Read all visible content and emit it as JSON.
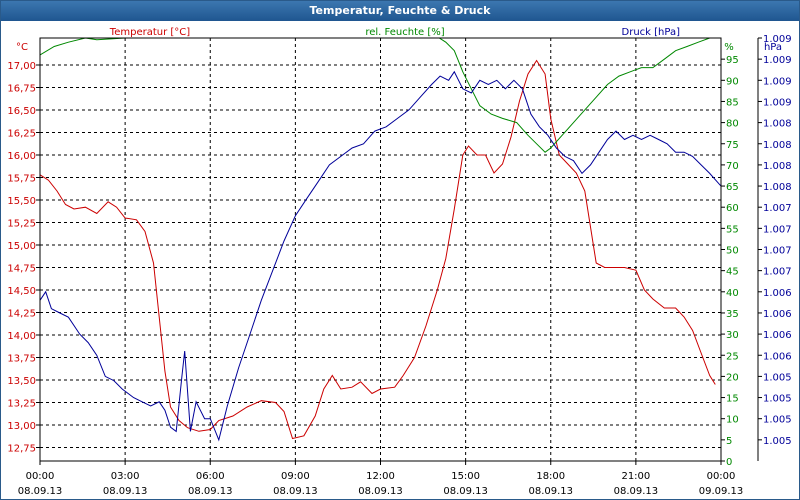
{
  "title": "Temperatur, Feuchte & Druck",
  "chart_data": {
    "type": "line",
    "title": "Temperatur, Feuchte & Druck",
    "x_labels": [
      {
        "time": "00:00",
        "date": "08.09.13"
      },
      {
        "time": "03:00",
        "date": "08.09.13"
      },
      {
        "time": "06:00",
        "date": "08.09.13"
      },
      {
        "time": "09:00",
        "date": "08.09.13"
      },
      {
        "time": "12:00",
        "date": "08.09.13"
      },
      {
        "time": "15:00",
        "date": "08.09.13"
      },
      {
        "time": "18:00",
        "date": "08.09.13"
      },
      {
        "time": "21:00",
        "date": "08.09.13"
      },
      {
        "time": "00:00",
        "date": "09.09.13"
      }
    ],
    "x_range_hours": [
      0,
      24
    ],
    "grid": true,
    "axes": {
      "temperature": {
        "label": "Temperatur [°C]",
        "unit": "°C",
        "side": "left",
        "range": [
          12.6,
          17.3
        ],
        "ticks": [
          "12,75",
          "13,00",
          "13,25",
          "13,50",
          "13,75",
          "14,00",
          "14,25",
          "14,50",
          "14,75",
          "15,00",
          "15,25",
          "15,50",
          "15,75",
          "16,00",
          "16,25",
          "16,50",
          "16,75",
          "17,00"
        ],
        "color": "#cc0000"
      },
      "humidity": {
        "label": "rel. Feuchte [%]",
        "unit": "%",
        "side": "right",
        "range": [
          0,
          100
        ],
        "ticks": [
          "0",
          "5",
          "10",
          "15",
          "20",
          "25",
          "30",
          "35",
          "40",
          "45",
          "50",
          "55",
          "60",
          "65",
          "70",
          "75",
          "80",
          "85",
          "90",
          "95"
        ],
        "color": "#008800"
      },
      "pressure": {
        "label": "Druck [hPa]",
        "unit": "hPa",
        "side": "right",
        "range": [
          0,
          1
        ],
        "ticks": [
          "1.005",
          "1.005",
          "1.005",
          "1.005",
          "1.006",
          "1.006",
          "1.006",
          "1.006",
          "1.007",
          "1.007",
          "1.007",
          "1.007",
          "1.008",
          "1.008",
          "1.008",
          "1.008",
          "1.009",
          "1.009",
          "1.009",
          "1.009"
        ],
        "color": "#000099"
      }
    },
    "series": [
      {
        "name": "Temperatur [°C]",
        "axis": "temperature",
        "color": "#cc0000",
        "points": [
          [
            0,
            15.78
          ],
          [
            0.3,
            15.72
          ],
          [
            0.6,
            15.6
          ],
          [
            0.9,
            15.45
          ],
          [
            1.2,
            15.4
          ],
          [
            1.6,
            15.42
          ],
          [
            2.0,
            15.35
          ],
          [
            2.4,
            15.48
          ],
          [
            2.7,
            15.42
          ],
          [
            3.0,
            15.3
          ],
          [
            3.4,
            15.28
          ],
          [
            3.7,
            15.15
          ],
          [
            4.0,
            14.8
          ],
          [
            4.2,
            14.2
          ],
          [
            4.4,
            13.6
          ],
          [
            4.6,
            13.2
          ],
          [
            4.9,
            13.05
          ],
          [
            5.2,
            12.97
          ],
          [
            5.6,
            12.93
          ],
          [
            6.0,
            12.95
          ],
          [
            6.3,
            13.05
          ],
          [
            6.8,
            13.1
          ],
          [
            7.3,
            13.2
          ],
          [
            7.8,
            13.27
          ],
          [
            8.3,
            13.25
          ],
          [
            8.6,
            13.15
          ],
          [
            8.9,
            12.85
          ],
          [
            9.3,
            12.88
          ],
          [
            9.7,
            13.1
          ],
          [
            10.0,
            13.4
          ],
          [
            10.3,
            13.55
          ],
          [
            10.6,
            13.4
          ],
          [
            11.0,
            13.42
          ],
          [
            11.3,
            13.48
          ],
          [
            11.7,
            13.35
          ],
          [
            12.0,
            13.4
          ],
          [
            12.5,
            13.42
          ],
          [
            12.8,
            13.55
          ],
          [
            13.2,
            13.75
          ],
          [
            13.6,
            14.1
          ],
          [
            14.0,
            14.5
          ],
          [
            14.3,
            14.85
          ],
          [
            14.6,
            15.4
          ],
          [
            14.9,
            16.0
          ],
          [
            15.1,
            16.1
          ],
          [
            15.4,
            16.0
          ],
          [
            15.7,
            16.0
          ],
          [
            16.0,
            15.8
          ],
          [
            16.3,
            15.9
          ],
          [
            16.6,
            16.2
          ],
          [
            16.9,
            16.6
          ],
          [
            17.2,
            16.9
          ],
          [
            17.5,
            17.05
          ],
          [
            17.8,
            16.9
          ],
          [
            18.0,
            16.4
          ],
          [
            18.3,
            16.0
          ],
          [
            18.6,
            15.9
          ],
          [
            18.9,
            15.8
          ],
          [
            19.2,
            15.6
          ],
          [
            19.4,
            15.2
          ],
          [
            19.6,
            14.8
          ],
          [
            19.9,
            14.75
          ],
          [
            20.2,
            14.75
          ],
          [
            20.6,
            14.75
          ],
          [
            21.0,
            14.72
          ],
          [
            21.3,
            14.5
          ],
          [
            21.6,
            14.4
          ],
          [
            22.0,
            14.3
          ],
          [
            22.4,
            14.3
          ],
          [
            22.7,
            14.2
          ],
          [
            23.0,
            14.05
          ],
          [
            23.3,
            13.8
          ],
          [
            23.6,
            13.55
          ],
          [
            23.8,
            13.45
          ]
        ]
      },
      {
        "name": "rel. Feuchte [%]",
        "axis": "humidity",
        "color": "#008800",
        "points": [
          [
            0,
            96
          ],
          [
            0.5,
            98
          ],
          [
            1.0,
            99
          ],
          [
            1.6,
            100
          ],
          [
            2.0,
            99.6
          ],
          [
            3.0,
            100
          ],
          [
            4.0,
            100
          ],
          [
            5.0,
            100.5
          ],
          [
            6.0,
            101
          ],
          [
            9.0,
            101
          ],
          [
            12.0,
            100.5
          ],
          [
            14.0,
            100.3
          ],
          [
            14.3,
            99
          ],
          [
            14.6,
            97
          ],
          [
            14.9,
            92
          ],
          [
            15.2,
            88
          ],
          [
            15.5,
            84
          ],
          [
            15.9,
            82
          ],
          [
            16.3,
            81
          ],
          [
            16.8,
            80
          ],
          [
            17.2,
            77
          ],
          [
            17.5,
            75
          ],
          [
            17.8,
            73
          ],
          [
            18.0,
            74
          ],
          [
            18.4,
            77
          ],
          [
            18.8,
            80
          ],
          [
            19.2,
            83
          ],
          [
            19.6,
            86
          ],
          [
            20.0,
            89
          ],
          [
            20.4,
            91
          ],
          [
            20.8,
            92
          ],
          [
            21.2,
            93
          ],
          [
            21.6,
            93
          ],
          [
            22.0,
            95
          ],
          [
            22.4,
            97
          ],
          [
            22.8,
            98
          ],
          [
            23.2,
            99
          ],
          [
            23.6,
            100
          ],
          [
            24.0,
            101
          ]
        ]
      },
      {
        "name": "Druck [hPa]",
        "axis": "pressure",
        "color": "#000099",
        "points": [
          [
            0,
            0.38
          ],
          [
            0.2,
            0.4
          ],
          [
            0.4,
            0.36
          ],
          [
            0.7,
            0.35
          ],
          [
            1.0,
            0.34
          ],
          [
            1.4,
            0.3
          ],
          [
            1.7,
            0.28
          ],
          [
            2.0,
            0.25
          ],
          [
            2.3,
            0.2
          ],
          [
            2.6,
            0.19
          ],
          [
            2.9,
            0.17
          ],
          [
            3.3,
            0.15
          ],
          [
            3.6,
            0.14
          ],
          [
            3.9,
            0.13
          ],
          [
            4.2,
            0.14
          ],
          [
            4.4,
            0.12
          ],
          [
            4.6,
            0.08
          ],
          [
            4.8,
            0.07
          ],
          [
            5.0,
            0.2
          ],
          [
            5.1,
            0.26
          ],
          [
            5.3,
            0.07
          ],
          [
            5.5,
            0.14
          ],
          [
            5.8,
            0.1
          ],
          [
            6.0,
            0.1
          ],
          [
            6.3,
            0.05
          ],
          [
            6.6,
            0.13
          ],
          [
            7.0,
            0.22
          ],
          [
            7.4,
            0.3
          ],
          [
            7.8,
            0.38
          ],
          [
            8.2,
            0.45
          ],
          [
            8.6,
            0.52
          ],
          [
            9.0,
            0.58
          ],
          [
            9.4,
            0.62
          ],
          [
            9.8,
            0.66
          ],
          [
            10.2,
            0.7
          ],
          [
            10.6,
            0.72
          ],
          [
            11.0,
            0.74
          ],
          [
            11.4,
            0.75
          ],
          [
            11.8,
            0.78
          ],
          [
            12.2,
            0.79
          ],
          [
            12.6,
            0.81
          ],
          [
            13.0,
            0.83
          ],
          [
            13.4,
            0.86
          ],
          [
            13.8,
            0.89
          ],
          [
            14.1,
            0.91
          ],
          [
            14.4,
            0.9
          ],
          [
            14.6,
            0.92
          ],
          [
            14.9,
            0.88
          ],
          [
            15.2,
            0.87
          ],
          [
            15.5,
            0.9
          ],
          [
            15.8,
            0.89
          ],
          [
            16.1,
            0.9
          ],
          [
            16.4,
            0.88
          ],
          [
            16.7,
            0.9
          ],
          [
            17.0,
            0.88
          ],
          [
            17.3,
            0.82
          ],
          [
            17.6,
            0.79
          ],
          [
            17.9,
            0.77
          ],
          [
            18.2,
            0.74
          ],
          [
            18.5,
            0.72
          ],
          [
            18.8,
            0.71
          ],
          [
            19.1,
            0.68
          ],
          [
            19.4,
            0.7
          ],
          [
            19.7,
            0.73
          ],
          [
            20.0,
            0.76
          ],
          [
            20.3,
            0.78
          ],
          [
            20.6,
            0.76
          ],
          [
            20.9,
            0.77
          ],
          [
            21.2,
            0.76
          ],
          [
            21.5,
            0.77
          ],
          [
            21.8,
            0.76
          ],
          [
            22.1,
            0.75
          ],
          [
            22.4,
            0.73
          ],
          [
            22.7,
            0.73
          ],
          [
            23.0,
            0.72
          ],
          [
            23.3,
            0.7
          ],
          [
            23.6,
            0.68
          ],
          [
            24.0,
            0.65
          ]
        ]
      }
    ]
  }
}
